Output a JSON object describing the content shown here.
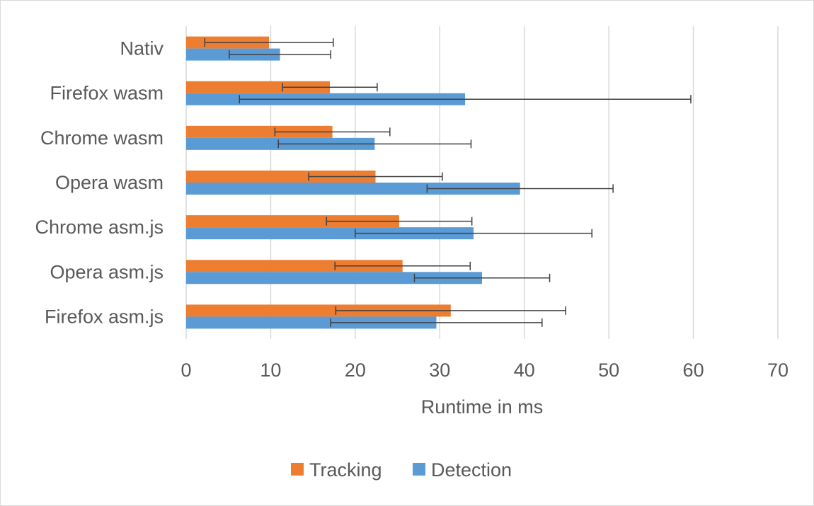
{
  "chart_data": {
    "type": "bar",
    "orientation": "horizontal",
    "title": "",
    "xlabel": "Runtime in ms",
    "ylabel": "",
    "xlim": [
      0,
      70
    ],
    "x_ticks": [
      0,
      10,
      20,
      30,
      40,
      50,
      60,
      70
    ],
    "grid": true,
    "legend_position": "bottom",
    "categories": [
      "Nativ",
      "Firefox wasm",
      "Chrome wasm",
      "Opera wasm",
      "Chrome asm.js",
      "Opera asm.js",
      "Firefox asm.js"
    ],
    "series": [
      {
        "name": "Tracking",
        "color": "#ed7d31",
        "values": [
          9.8,
          17.0,
          17.3,
          22.4,
          25.2,
          25.6,
          31.3
        ],
        "error": [
          7.6,
          5.6,
          6.8,
          7.9,
          8.6,
          8.0,
          13.6
        ]
      },
      {
        "name": "Detection",
        "color": "#5b9bd5",
        "values": [
          11.1,
          33.0,
          22.3,
          39.5,
          34.0,
          35.0,
          29.6
        ],
        "error": [
          6.0,
          26.7,
          11.4,
          11.0,
          14.0,
          8.0,
          12.5
        ]
      }
    ],
    "error_bar_color": "#404040",
    "gridline_color": "#d9d9d9"
  }
}
